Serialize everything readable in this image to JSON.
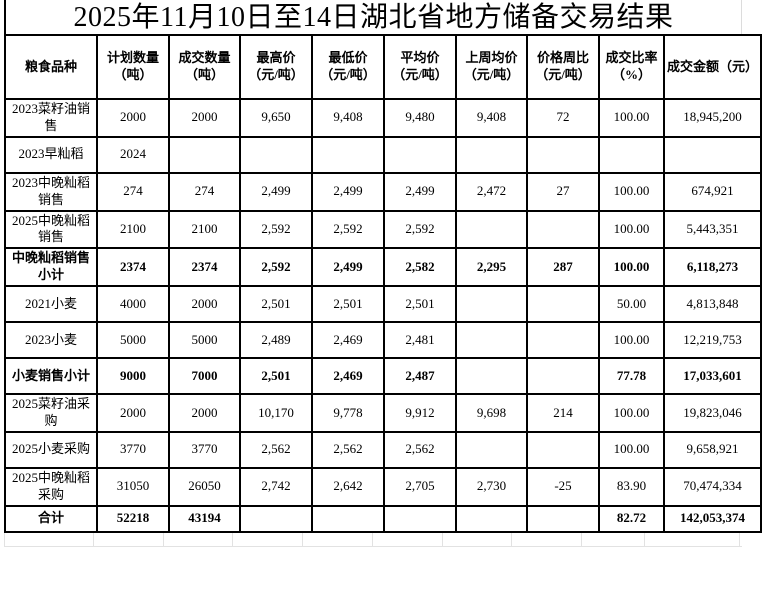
{
  "title": "2025年11月10日至14日湖北省地方储备交易结果",
  "table": {
    "headers": [
      "粮食品种",
      "计划数量\n（吨）",
      "成交数量\n（吨）",
      "最高价\n（元/吨）",
      "最低价\n（元/吨）",
      "平均价\n（元/吨）",
      "上周均价\n（元/吨）",
      "价格周比\n（元/吨）",
      "成交比率\n（%）",
      "成交金额（元）"
    ],
    "rows": [
      {
        "label": "2023菜籽油销\n售",
        "values": [
          "2000",
          "2000",
          "9,650",
          "9,408",
          "9,480",
          "9,408",
          "72",
          "100.00",
          "18,945,200"
        ],
        "emphasis": false
      },
      {
        "label": "2023早籼稻",
        "values": [
          "2024",
          "",
          "",
          "",
          "",
          "",
          "",
          "",
          ""
        ],
        "emphasis": false
      },
      {
        "label": "2023中晚籼稻\n销售",
        "values": [
          "274",
          "274",
          "2,499",
          "2,499",
          "2,499",
          "2,472",
          "27",
          "100.00",
          "674,921"
        ],
        "emphasis": false
      },
      {
        "label": "2025中晚籼稻\n销售",
        "values": [
          "2100",
          "2100",
          "2,592",
          "2,592",
          "2,592",
          "",
          "",
          "100.00",
          "5,443,351"
        ],
        "emphasis": false
      },
      {
        "label": "中晚籼稻销售\n小计",
        "values": [
          "2374",
          "2374",
          "2,592",
          "2,499",
          "2,582",
          "2,295",
          "287",
          "100.00",
          "6,118,273"
        ],
        "emphasis": true
      },
      {
        "label": "2021小麦",
        "values": [
          "4000",
          "2000",
          "2,501",
          "2,501",
          "2,501",
          "",
          "",
          "50.00",
          "4,813,848"
        ],
        "emphasis": false
      },
      {
        "label": "2023小麦",
        "values": [
          "5000",
          "5000",
          "2,489",
          "2,469",
          "2,481",
          "",
          "",
          "100.00",
          "12,219,753"
        ],
        "emphasis": false
      },
      {
        "label": "小麦销售小计",
        "values": [
          "9000",
          "7000",
          "2,501",
          "2,469",
          "2,487",
          "",
          "",
          "77.78",
          "17,033,601"
        ],
        "emphasis": true
      },
      {
        "label": "2025菜籽油采\n购",
        "values": [
          "2000",
          "2000",
          "10,170",
          "9,778",
          "9,912",
          "9,698",
          "214",
          "100.00",
          "19,823,046"
        ],
        "emphasis": false
      },
      {
        "label": "2025小麦采购",
        "values": [
          "3770",
          "3770",
          "2,562",
          "2,562",
          "2,562",
          "",
          "",
          "100.00",
          "9,658,921"
        ],
        "emphasis": false
      },
      {
        "label": "2025中晚籼稻\n采购",
        "values": [
          "31050",
          "26050",
          "2,742",
          "2,642",
          "2,705",
          "2,730",
          "-25",
          "83.90",
          "70,474,334"
        ],
        "emphasis": false
      },
      {
        "label": "合计",
        "values": [
          "52218",
          "43194",
          "",
          "",
          "",
          "",
          "",
          "82.72",
          "142,053,374"
        ],
        "emphasis": true
      }
    ]
  },
  "colors": {
    "border": "#000000",
    "text": "#000000",
    "background": "#ffffff",
    "faint_gridline": "#e2e2e2"
  }
}
